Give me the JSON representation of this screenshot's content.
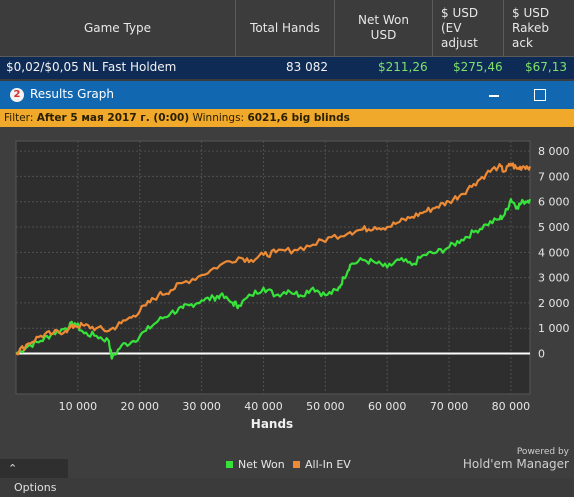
{
  "table": {
    "headers": [
      "Game Type",
      "Total Hands",
      "Net Won USD",
      "$ USD (EV adjust",
      "$ USD Rakeback"
    ],
    "header_lines": [
      [
        "Game Type"
      ],
      [
        "Total Hands"
      ],
      [
        "Net Won",
        "USD"
      ],
      [
        "$ USD",
        "(EV",
        "adjust"
      ],
      [
        "$ USD",
        "Rakeb",
        "ack"
      ]
    ],
    "row": {
      "game": "$0,02/$0,05 NL Fast Holdem",
      "hands": "83 082",
      "net_won": "$211,26",
      "ev_adjusted": "$275,46",
      "rakeback": "$67,13"
    }
  },
  "window": {
    "badge": "2",
    "title": "Results Graph",
    "minimize_icon": "minimize-icon",
    "maximize_icon": "maximize-icon"
  },
  "filter": {
    "label": "Filter:",
    "value": "After 5 мая 2017 г. (0:00)",
    "winnings_label": "Winnings:",
    "winnings_value": "6021,6 big blinds"
  },
  "colors": {
    "net_won": "#37e23a",
    "all_in_ev": "#ec8a35",
    "zero_line": "#ffffff",
    "title_bar": "#1168b0",
    "filter_bar": "#f0a92a"
  },
  "chart_data": {
    "type": "line",
    "xlabel": "Hands",
    "ylabel": "",
    "xlim": [
      0,
      83082
    ],
    "ylim": [
      -1600,
      8400
    ],
    "x_ticks": [
      10000,
      20000,
      30000,
      40000,
      50000,
      60000,
      70000,
      80000
    ],
    "x_tick_labels": [
      "10 000",
      "20 000",
      "30 000",
      "40 000",
      "50 000",
      "60 000",
      "70 000",
      "80 000"
    ],
    "y_ticks": [
      0,
      1000,
      2000,
      3000,
      4000,
      5000,
      6000,
      7000,
      8000
    ],
    "y_tick_labels": [
      "0",
      "1 000",
      "2 000",
      "3 000",
      "4 000",
      "5 000",
      "6 000",
      "7 000",
      "8 000"
    ],
    "grid": true,
    "legend_position": "bottom-center",
    "series": [
      {
        "name": "Net Won",
        "color": "#37e23a",
        "x": [
          0,
          2000,
          4000,
          6000,
          8000,
          9500,
          11000,
          13000,
          15000,
          15500,
          17000,
          19000,
          21000,
          23000,
          25000,
          27000,
          28000,
          30000,
          32000,
          33000,
          35000,
          36000,
          38000,
          40000,
          42000,
          44000,
          46000,
          48000,
          50000,
          52000,
          53000,
          54000,
          56000,
          58000,
          60000,
          62000,
          64000,
          66000,
          68000,
          70000,
          72000,
          74000,
          76000,
          78000,
          79000,
          80000,
          81000,
          82000,
          83082
        ],
        "y": [
          0,
          300,
          500,
          800,
          1000,
          1200,
          800,
          700,
          500,
          -200,
          300,
          500,
          900,
          1300,
          1600,
          1800,
          1900,
          2100,
          2200,
          2300,
          2000,
          1900,
          2300,
          2600,
          2300,
          2500,
          2300,
          2600,
          2300,
          2500,
          3000,
          3500,
          3700,
          3600,
          3400,
          3700,
          3500,
          3900,
          4000,
          4200,
          4500,
          4800,
          5100,
          5300,
          5500,
          6100,
          5800,
          6000,
          6100
        ]
      },
      {
        "name": "All-In EV",
        "color": "#ec8a35",
        "x": [
          0,
          2000,
          4000,
          6000,
          8000,
          9500,
          11000,
          13000,
          15000,
          17000,
          19000,
          21000,
          23000,
          25000,
          27000,
          30000,
          33000,
          36000,
          38000,
          40000,
          42000,
          45000,
          48000,
          51000,
          54000,
          56000,
          58000,
          60000,
          62000,
          64000,
          66000,
          68000,
          70000,
          72000,
          74000,
          76000,
          78000,
          79000,
          80000,
          81000,
          82000,
          83082
        ],
        "y": [
          0,
          400,
          700,
          800,
          900,
          1100,
          1100,
          1000,
          900,
          1200,
          1500,
          1900,
          2300,
          2500,
          2800,
          3100,
          3500,
          3800,
          3700,
          3900,
          4000,
          4100,
          4300,
          4600,
          4800,
          4900,
          5000,
          5000,
          5200,
          5400,
          5600,
          5800,
          6000,
          6300,
          6700,
          7100,
          7400,
          7200,
          7500,
          7300,
          7400,
          7400
        ]
      }
    ]
  },
  "footer": {
    "options_label": "Options",
    "legend": [
      "Net Won",
      "All-In EV"
    ],
    "powered_by": "Powered by",
    "brand": "Hold'em Manager"
  }
}
